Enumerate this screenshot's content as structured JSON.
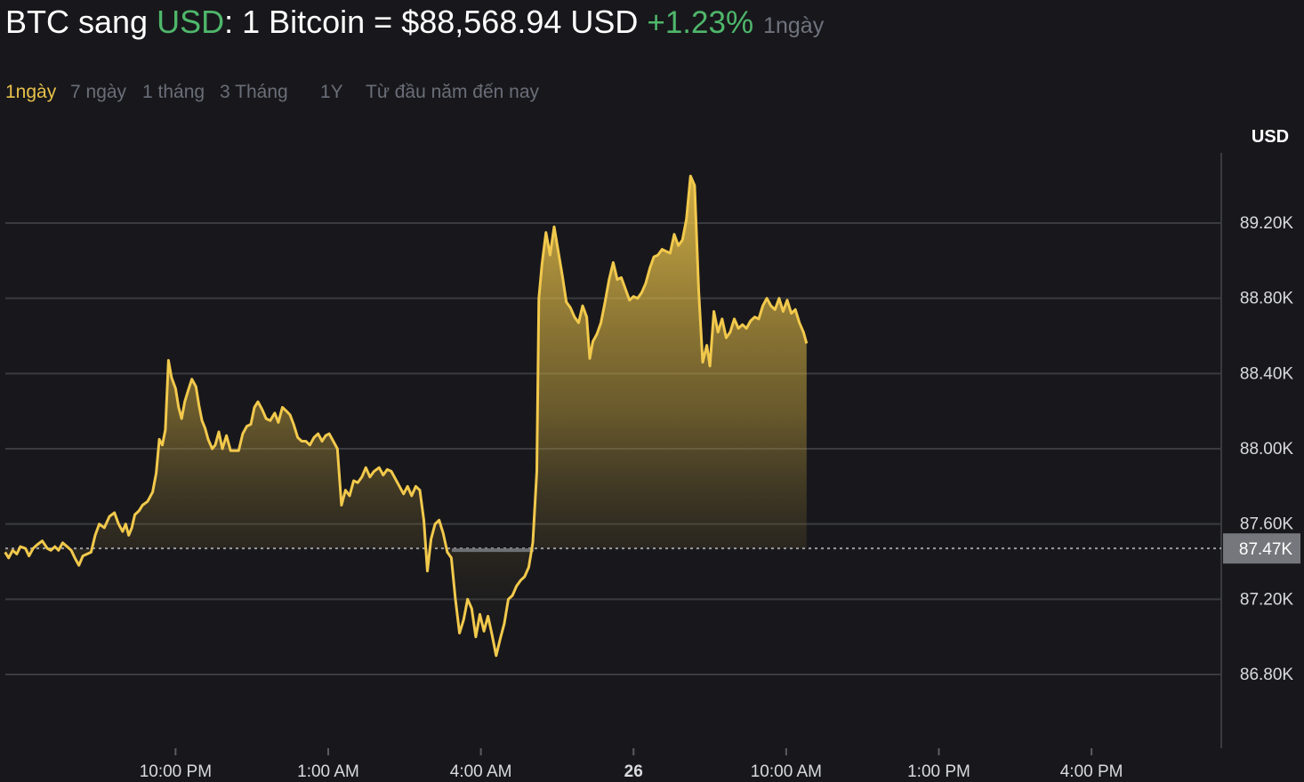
{
  "header": {
    "from": "BTC",
    "word_to": "sang",
    "quote": "USD",
    "colon_text": ": 1 Bitcoin =",
    "price": "$88,568.94 USD",
    "change": "+1.23%",
    "period": "1ngày"
  },
  "tabs": [
    {
      "label": "1ngày",
      "active": true
    },
    {
      "label": "7 ngày",
      "active": false
    },
    {
      "label": "1 tháng",
      "active": false
    },
    {
      "label": "3 Tháng",
      "active": false
    },
    {
      "label": "1Y",
      "active": false
    },
    {
      "label": "Từ đầu năm đến nay",
      "active": false
    }
  ],
  "colors": {
    "background": "#18181c",
    "line": "#f2c94c",
    "positive": "#4fb76b",
    "active_tab": "#e8c14a",
    "muted": "#6f737d",
    "grid": "#3a3b40",
    "price_tag": "#75777c"
  },
  "chart_data": {
    "type": "area",
    "unit_label": "USD",
    "y_ticks": [
      "89.20K",
      "88.80K",
      "88.40K",
      "88.00K",
      "87.60K",
      "87.20K",
      "86.80K"
    ],
    "y_tick_values": [
      89200,
      88800,
      88400,
      88000,
      87600,
      87200,
      86800
    ],
    "x_ticks": [
      {
        "label": "10:00 PM",
        "t": 4,
        "bold": false
      },
      {
        "label": "1:00 AM",
        "t": 7,
        "bold": false
      },
      {
        "label": "4:00 AM",
        "t": 10,
        "bold": false
      },
      {
        "label": "26",
        "t": 13,
        "bold": true
      },
      {
        "label": "10:00 AM",
        "t": 16,
        "bold": false
      },
      {
        "label": "1:00 PM",
        "t": 19,
        "bold": false
      },
      {
        "label": "4:00 PM",
        "t": 22,
        "bold": false
      }
    ],
    "x_range_hours": [
      0.55,
      24.55
    ],
    "ylim": [
      86500,
      89600
    ],
    "baseline": 87470,
    "baseline_label": "87.47K",
    "last_value": 88568.94,
    "grid": true,
    "series": [
      {
        "values": [
          [
            0.65,
            87450
          ],
          [
            0.72,
            87420
          ],
          [
            0.8,
            87460
          ],
          [
            0.88,
            87440
          ],
          [
            0.95,
            87480
          ],
          [
            1.05,
            87470
          ],
          [
            1.12,
            87430
          ],
          [
            1.2,
            87470
          ],
          [
            1.28,
            87490
          ],
          [
            1.38,
            87510
          ],
          [
            1.48,
            87470
          ],
          [
            1.55,
            87460
          ],
          [
            1.63,
            87480
          ],
          [
            1.7,
            87460
          ],
          [
            1.78,
            87500
          ],
          [
            1.87,
            87480
          ],
          [
            1.95,
            87460
          ],
          [
            2.02,
            87420
          ],
          [
            2.1,
            87380
          ],
          [
            2.18,
            87430
          ],
          [
            2.26,
            87440
          ],
          [
            2.34,
            87450
          ],
          [
            2.42,
            87540
          ],
          [
            2.5,
            87600
          ],
          [
            2.6,
            87580
          ],
          [
            2.7,
            87640
          ],
          [
            2.8,
            87660
          ],
          [
            2.88,
            87600
          ],
          [
            2.96,
            87560
          ],
          [
            3.02,
            87600
          ],
          [
            3.08,
            87540
          ],
          [
            3.14,
            87580
          ],
          [
            3.2,
            87650
          ],
          [
            3.28,
            87670
          ],
          [
            3.35,
            87700
          ],
          [
            3.45,
            87720
          ],
          [
            3.55,
            87770
          ],
          [
            3.62,
            87870
          ],
          [
            3.68,
            88050
          ],
          [
            3.74,
            88020
          ],
          [
            3.8,
            88100
          ],
          [
            3.86,
            88470
          ],
          [
            3.92,
            88380
          ],
          [
            4.0,
            88320
          ],
          [
            4.06,
            88220
          ],
          [
            4.12,
            88160
          ],
          [
            4.18,
            88250
          ],
          [
            4.26,
            88320
          ],
          [
            4.32,
            88370
          ],
          [
            4.4,
            88330
          ],
          [
            4.46,
            88230
          ],
          [
            4.52,
            88150
          ],
          [
            4.58,
            88110
          ],
          [
            4.64,
            88050
          ],
          [
            4.72,
            88000
          ],
          [
            4.78,
            88020
          ],
          [
            4.85,
            88090
          ],
          [
            4.92,
            88000
          ],
          [
            5.0,
            88070
          ],
          [
            5.08,
            87990
          ],
          [
            5.16,
            87990
          ],
          [
            5.24,
            87990
          ],
          [
            5.32,
            88080
          ],
          [
            5.4,
            88120
          ],
          [
            5.48,
            88130
          ],
          [
            5.55,
            88220
          ],
          [
            5.62,
            88250
          ],
          [
            5.7,
            88210
          ],
          [
            5.78,
            88160
          ],
          [
            5.86,
            88150
          ],
          [
            5.95,
            88190
          ],
          [
            6.02,
            88140
          ],
          [
            6.1,
            88220
          ],
          [
            6.18,
            88200
          ],
          [
            6.25,
            88180
          ],
          [
            6.32,
            88130
          ],
          [
            6.4,
            88060
          ],
          [
            6.48,
            88040
          ],
          [
            6.56,
            88040
          ],
          [
            6.64,
            88020
          ],
          [
            6.72,
            88060
          ],
          [
            6.8,
            88080
          ],
          [
            6.88,
            88040
          ],
          [
            6.95,
            88070
          ],
          [
            7.02,
            88080
          ],
          [
            7.1,
            88040
          ],
          [
            7.18,
            88000
          ],
          [
            7.26,
            87700
          ],
          [
            7.34,
            87780
          ],
          [
            7.42,
            87750
          ],
          [
            7.5,
            87830
          ],
          [
            7.58,
            87820
          ],
          [
            7.66,
            87850
          ],
          [
            7.74,
            87900
          ],
          [
            7.82,
            87850
          ],
          [
            7.9,
            87880
          ],
          [
            8.0,
            87900
          ],
          [
            8.08,
            87860
          ],
          [
            8.16,
            87890
          ],
          [
            8.24,
            87880
          ],
          [
            8.32,
            87840
          ],
          [
            8.4,
            87800
          ],
          [
            8.48,
            87760
          ],
          [
            8.56,
            87800
          ],
          [
            8.64,
            87750
          ],
          [
            8.72,
            87800
          ],
          [
            8.8,
            87780
          ],
          [
            8.88,
            87620
          ],
          [
            8.95,
            87350
          ],
          [
            9.02,
            87520
          ],
          [
            9.1,
            87600
          ],
          [
            9.18,
            87620
          ],
          [
            9.26,
            87550
          ],
          [
            9.34,
            87450
          ],
          [
            9.42,
            87420
          ],
          [
            9.5,
            87200
          ],
          [
            9.58,
            87020
          ],
          [
            9.66,
            87090
          ],
          [
            9.74,
            87200
          ],
          [
            9.82,
            87150
          ],
          [
            9.9,
            87000
          ],
          [
            9.98,
            87120
          ],
          [
            10.06,
            87030
          ],
          [
            10.14,
            87110
          ],
          [
            10.22,
            87010
          ],
          [
            10.3,
            86900
          ],
          [
            10.38,
            86990
          ],
          [
            10.46,
            87070
          ],
          [
            10.54,
            87200
          ],
          [
            10.62,
            87220
          ],
          [
            10.7,
            87270
          ],
          [
            10.78,
            87300
          ],
          [
            10.86,
            87320
          ],
          [
            10.94,
            87370
          ],
          [
            11.02,
            87500
          ],
          [
            11.1,
            87880
          ],
          [
            11.14,
            88800
          ],
          [
            11.2,
            88980
          ],
          [
            11.28,
            89150
          ],
          [
            11.36,
            89030
          ],
          [
            11.44,
            89180
          ],
          [
            11.52,
            89050
          ],
          [
            11.6,
            88920
          ],
          [
            11.68,
            88780
          ],
          [
            11.76,
            88750
          ],
          [
            11.84,
            88700
          ],
          [
            11.92,
            88670
          ],
          [
            12.0,
            88760
          ],
          [
            12.08,
            88700
          ],
          [
            12.14,
            88480
          ],
          [
            12.2,
            88570
          ],
          [
            12.28,
            88610
          ],
          [
            12.36,
            88670
          ],
          [
            12.44,
            88780
          ],
          [
            12.52,
            88900
          ],
          [
            12.6,
            88990
          ],
          [
            12.68,
            88900
          ],
          [
            12.76,
            88910
          ],
          [
            12.84,
            88850
          ],
          [
            12.92,
            88790
          ],
          [
            13.0,
            88810
          ],
          [
            13.08,
            88800
          ],
          [
            13.16,
            88830
          ],
          [
            13.24,
            88880
          ],
          [
            13.32,
            88960
          ],
          [
            13.4,
            89020
          ],
          [
            13.48,
            89030
          ],
          [
            13.56,
            89060
          ],
          [
            13.64,
            89050
          ],
          [
            13.72,
            89040
          ],
          [
            13.8,
            89140
          ],
          [
            13.88,
            89080
          ],
          [
            13.96,
            89110
          ],
          [
            14.04,
            89220
          ],
          [
            14.12,
            89450
          ],
          [
            14.2,
            89400
          ],
          [
            14.28,
            88840
          ],
          [
            14.36,
            88460
          ],
          [
            14.44,
            88550
          ],
          [
            14.5,
            88440
          ],
          [
            14.58,
            88730
          ],
          [
            14.66,
            88620
          ],
          [
            14.74,
            88690
          ],
          [
            14.82,
            88590
          ],
          [
            14.9,
            88620
          ],
          [
            14.98,
            88690
          ],
          [
            15.06,
            88640
          ],
          [
            15.14,
            88660
          ],
          [
            15.22,
            88640
          ],
          [
            15.3,
            88680
          ],
          [
            15.38,
            88700
          ],
          [
            15.46,
            88690
          ],
          [
            15.54,
            88760
          ],
          [
            15.62,
            88800
          ],
          [
            15.7,
            88760
          ],
          [
            15.78,
            88740
          ],
          [
            15.86,
            88800
          ],
          [
            15.94,
            88730
          ],
          [
            16.02,
            88790
          ],
          [
            16.1,
            88720
          ],
          [
            16.18,
            88740
          ],
          [
            16.26,
            88670
          ],
          [
            16.34,
            88620
          ],
          [
            16.4,
            88560
          ]
        ]
      }
    ],
    "x_data_note": "series x values are hours elapsed from the left edge of the plot"
  }
}
